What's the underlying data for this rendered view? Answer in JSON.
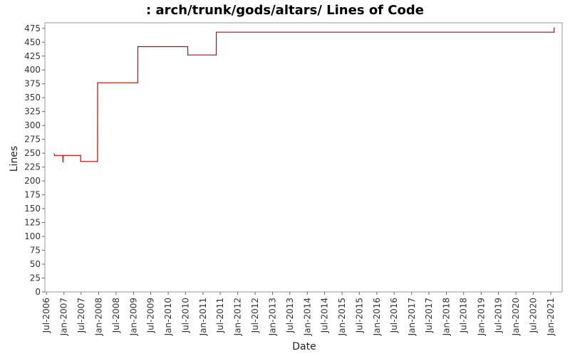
{
  "chart_data": {
    "type": "line",
    "title": ": arch/trunk/gods/altars/ Lines of Code",
    "xlabel": "Date",
    "ylabel": "Lines",
    "ylim": [
      0,
      485
    ],
    "xlim": [
      "2006-06-15",
      "2021-05-01"
    ],
    "yticks": [
      0,
      25,
      50,
      75,
      100,
      125,
      150,
      175,
      200,
      225,
      250,
      275,
      300,
      325,
      350,
      375,
      400,
      425,
      450,
      475
    ],
    "xticks": [
      {
        "date": "2006-07-01",
        "label": "Jul-2006"
      },
      {
        "date": "2007-01-01",
        "label": "Jan-2007"
      },
      {
        "date": "2007-07-01",
        "label": "Jul-2007"
      },
      {
        "date": "2008-01-01",
        "label": "Jan-2008"
      },
      {
        "date": "2008-07-01",
        "label": "Jul-2008"
      },
      {
        "date": "2009-01-01",
        "label": "Jan-2009"
      },
      {
        "date": "2009-07-01",
        "label": "Jul-2009"
      },
      {
        "date": "2010-01-01",
        "label": "Jan-2010"
      },
      {
        "date": "2010-07-01",
        "label": "Jul-2010"
      },
      {
        "date": "2011-01-01",
        "label": "Jan-2011"
      },
      {
        "date": "2011-07-01",
        "label": "Jul-2011"
      },
      {
        "date": "2012-01-01",
        "label": "Jan-2012"
      },
      {
        "date": "2012-07-01",
        "label": "Jul-2012"
      },
      {
        "date": "2013-01-01",
        "label": "Jan-2013"
      },
      {
        "date": "2013-07-01",
        "label": "Jul-2013"
      },
      {
        "date": "2014-01-01",
        "label": "Jan-2014"
      },
      {
        "date": "2014-07-01",
        "label": "Jul-2014"
      },
      {
        "date": "2015-01-01",
        "label": "Jan-2015"
      },
      {
        "date": "2015-07-01",
        "label": "Jul-2015"
      },
      {
        "date": "2016-01-01",
        "label": "Jan-2016"
      },
      {
        "date": "2016-07-01",
        "label": "Jul-2016"
      },
      {
        "date": "2017-01-01",
        "label": "Jan-2017"
      },
      {
        "date": "2017-07-01",
        "label": "Jul-2017"
      },
      {
        "date": "2018-01-01",
        "label": "Jan-2018"
      },
      {
        "date": "2018-07-01",
        "label": "Jul-2018"
      },
      {
        "date": "2019-01-01",
        "label": "Jan-2019"
      },
      {
        "date": "2019-07-01",
        "label": "Jul-2019"
      },
      {
        "date": "2020-01-01",
        "label": "Jan-2020"
      },
      {
        "date": "2020-07-01",
        "label": "Jul-2020"
      },
      {
        "date": "2021-01-01",
        "label": "Jan-2021"
      }
    ],
    "grid": false,
    "line_color": "#cc0000",
    "series": [
      {
        "points": [
          {
            "x": "2006-09-20",
            "y": 249
          },
          {
            "x": "2006-09-25",
            "y": 246
          },
          {
            "x": "2006-12-20",
            "y": 246
          },
          {
            "x": "2006-12-21",
            "y": 234
          },
          {
            "x": "2006-12-22",
            "y": 246
          },
          {
            "x": "2007-06-25",
            "y": 246
          },
          {
            "x": "2007-06-26",
            "y": 235
          },
          {
            "x": "2007-12-20",
            "y": 235
          },
          {
            "x": "2007-12-21",
            "y": 377
          },
          {
            "x": "2009-02-15",
            "y": 377
          },
          {
            "x": "2009-02-16",
            "y": 442
          },
          {
            "x": "2010-07-25",
            "y": 442
          },
          {
            "x": "2010-07-26",
            "y": 427
          },
          {
            "x": "2011-05-20",
            "y": 427
          },
          {
            "x": "2011-05-21",
            "y": 468
          },
          {
            "x": "2021-02-05",
            "y": 468
          },
          {
            "x": "2021-02-06",
            "y": 476
          }
        ]
      }
    ]
  }
}
